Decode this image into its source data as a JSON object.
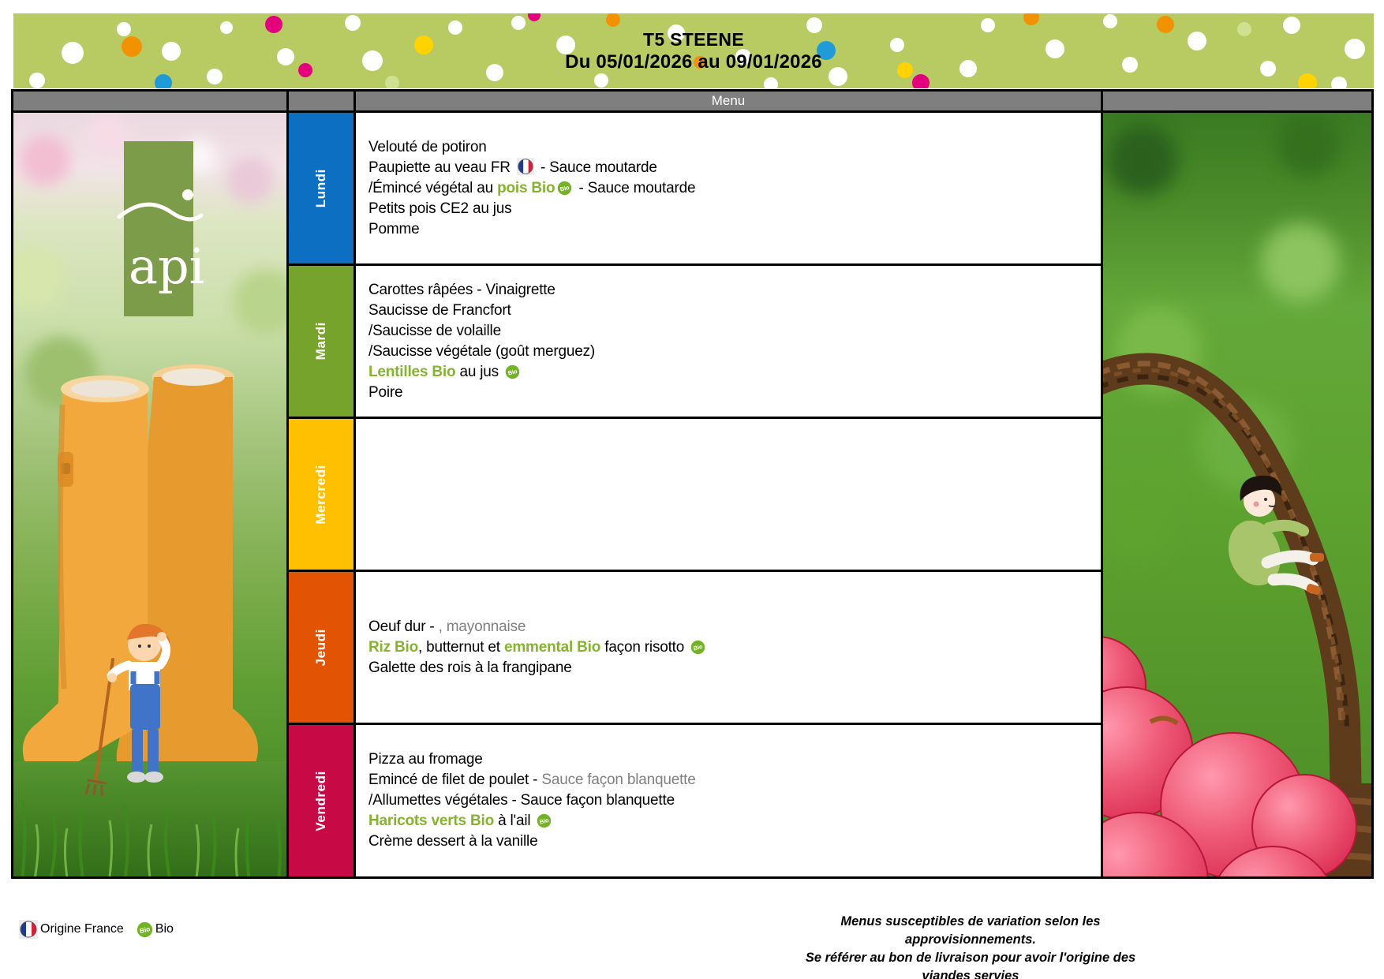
{
  "header": {
    "title": "T5 STEENE",
    "date_range": "Du 05/01/2026 au 09/01/2026"
  },
  "table": {
    "header_label": "Menu",
    "days": [
      {
        "label": "Lundi",
        "color": "#0d6fc1",
        "lines": [
          [
            {
              "t": "Velouté de potiron"
            }
          ],
          [
            {
              "t": "Paupiette au veau FR "
            },
            {
              "icon": "fr"
            },
            {
              "t": " - Sauce moutarde"
            }
          ],
          [
            {
              "t": "/Émincé végétal au "
            },
            {
              "t": "pois Bio",
              "c": "green"
            },
            {
              "icon": "bio"
            },
            {
              "t": " - Sauce moutarde"
            }
          ],
          [
            {
              "t": "Petits pois CE2 au jus"
            }
          ],
          [
            {
              "t": "Pomme"
            }
          ]
        ]
      },
      {
        "label": "Mardi",
        "color": "#76a32b",
        "lines": [
          [
            {
              "t": "Carottes râpées - Vinaigrette"
            }
          ],
          [
            {
              "t": "Saucisse de Francfort"
            }
          ],
          [
            {
              "t": "/Saucisse de volaille"
            }
          ],
          [
            {
              "t": "/Saucisse végétale (goût merguez)"
            }
          ],
          [
            {
              "t": "Lentilles Bio",
              "c": "green"
            },
            {
              "t": " au jus "
            },
            {
              "icon": "bio"
            }
          ],
          [
            {
              "t": "Poire"
            }
          ]
        ]
      },
      {
        "label": "Mercredi",
        "color": "#fec000",
        "lines": []
      },
      {
        "label": "Jeudi",
        "color": "#e25303",
        "lines": [
          [
            {
              "t": "Oeuf dur - "
            },
            {
              "t": ", mayonnaise",
              "c": "gray"
            }
          ],
          [
            {
              "t": "Riz Bio",
              "c": "green"
            },
            {
              "t": ", butternut et "
            },
            {
              "t": "emmental Bio",
              "c": "green"
            },
            {
              "t": " façon risotto "
            },
            {
              "icon": "bio"
            }
          ],
          [
            {
              "t": "Galette des rois à la frangipane"
            }
          ]
        ]
      },
      {
        "label": "Vendredi",
        "color": "#c70a46",
        "lines": [
          [
            {
              "t": "Pizza au fromage"
            }
          ],
          [
            {
              "t": "Emincé de filet de poulet - "
            },
            {
              "t": "Sauce façon blanquette",
              "c": "gray"
            }
          ],
          [
            {
              "t": "/Allumettes végétales - Sauce façon blanquette"
            }
          ],
          [
            {
              "t": "Haricots verts Bio",
              "c": "green"
            },
            {
              "t": " à l'ail "
            },
            {
              "icon": "bio"
            }
          ],
          [
            {
              "t": "Crème dessert à la vanille"
            }
          ]
        ]
      }
    ]
  },
  "branding": {
    "logo_text": "api"
  },
  "footer": {
    "origin_label": "Origine France",
    "bio_label": "Bio",
    "note_line1": "Menus susceptibles de variation selon les approvisionnements.",
    "note_line2": "Se référer au bon de livraison pour avoir l'origine des viandes servies"
  },
  "colors": {
    "banner_bg": "#b8cb63",
    "header_bar": "#7f7f7f",
    "bio_badge": "#74b226",
    "green_text": "#85b32d",
    "gray_text": "#7f7f7f"
  }
}
